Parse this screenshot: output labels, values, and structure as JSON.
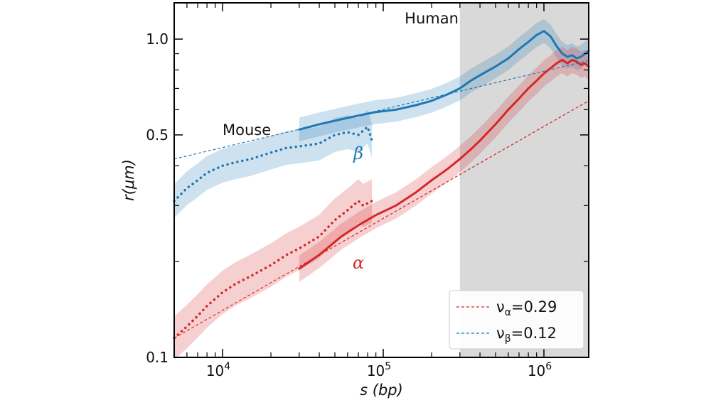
{
  "chart_data": {
    "type": "line",
    "xlabel": "s (bp)",
    "ylabel": "r(μm)",
    "xscale": "log",
    "yscale": "log",
    "xlim": [
      5000,
      1900000
    ],
    "ylim": [
      0.1,
      1.3
    ],
    "x_ticks": [
      {
        "value": 10000,
        "base": "10",
        "exp": "4"
      },
      {
        "value": 100000,
        "base": "10",
        "exp": "5"
      },
      {
        "value": 1000000,
        "base": "10",
        "exp": "6"
      }
    ],
    "y_ticks": [
      {
        "value": 0.1,
        "label": "0.1"
      },
      {
        "value": 0.5,
        "label": "0.5"
      },
      {
        "value": 1.0,
        "label": "1.0"
      }
    ],
    "grid": false,
    "colors": {
      "alpha": "#d62728",
      "beta": "#1f77b4",
      "shade": "#d9d9d9"
    },
    "shaded_region": {
      "x_start": 300000,
      "x_end": 1900000
    },
    "annotations": [
      {
        "id": "human",
        "text": "Human",
        "x": 200000,
        "y": 1.12
      },
      {
        "id": "mouse",
        "text": "Mouse",
        "x": 10000,
        "y": 0.5
      },
      {
        "id": "beta",
        "text": "β",
        "x": 70000,
        "y": 0.42
      },
      {
        "id": "alpha",
        "text": "α",
        "x": 70000,
        "y": 0.19
      }
    ],
    "legend": {
      "position": "bottom-right",
      "entries": [
        {
          "symbol": "ν",
          "subscript": "α",
          "value": "=0.29",
          "color": "#d62728"
        },
        {
          "symbol": "ν",
          "subscript": "β",
          "value": "=0.12",
          "color": "#1f77b4"
        }
      ]
    },
    "series": [
      {
        "style": "solid",
        "color": "#1f77b4",
        "band_rel": 0.09,
        "x": [
          30000,
          40000,
          55000,
          70000,
          90000,
          120000,
          160000,
          200000,
          250000,
          300000,
          350000,
          400000,
          500000,
          600000,
          700000,
          800000,
          900000,
          1000000,
          1100000,
          1200000,
          1300000,
          1400000,
          1500000,
          1600000,
          1700000,
          1800000,
          1900000
        ],
        "y": [
          0.52,
          0.54,
          0.56,
          0.575,
          0.59,
          0.6,
          0.62,
          0.64,
          0.67,
          0.7,
          0.74,
          0.77,
          0.82,
          0.87,
          0.93,
          0.98,
          1.03,
          1.06,
          1.02,
          0.95,
          0.9,
          0.88,
          0.89,
          0.87,
          0.88,
          0.9,
          0.92
        ]
      },
      {
        "style": "dotted",
        "color": "#1f77b4",
        "band_rel": 0.13,
        "x": [
          5000,
          6000,
          7000,
          8000,
          10000,
          12000,
          15000,
          20000,
          25000,
          30000,
          40000,
          50000,
          60000,
          70000,
          80000,
          85000
        ],
        "y": [
          0.31,
          0.34,
          0.36,
          0.38,
          0.4,
          0.41,
          0.42,
          0.44,
          0.455,
          0.46,
          0.47,
          0.5,
          0.51,
          0.5,
          0.53,
          0.48
        ]
      },
      {
        "style": "solid",
        "color": "#d62728",
        "band_rel": 0.1,
        "x": [
          30000,
          40000,
          55000,
          70000,
          90000,
          120000,
          160000,
          200000,
          250000,
          300000,
          350000,
          400000,
          500000,
          600000,
          700000,
          800000,
          900000,
          1000000,
          1100000,
          1200000,
          1300000,
          1400000,
          1500000,
          1600000,
          1700000,
          1800000,
          1900000
        ],
        "y": [
          0.19,
          0.21,
          0.24,
          0.26,
          0.28,
          0.3,
          0.33,
          0.36,
          0.39,
          0.42,
          0.45,
          0.48,
          0.54,
          0.6,
          0.65,
          0.7,
          0.74,
          0.78,
          0.81,
          0.84,
          0.86,
          0.84,
          0.86,
          0.85,
          0.83,
          0.84,
          0.82
        ]
      },
      {
        "style": "dotted",
        "color": "#d62728",
        "band_rel": 0.17,
        "x": [
          5000,
          6000,
          7000,
          8000,
          10000,
          12000,
          15000,
          20000,
          25000,
          30000,
          40000,
          50000,
          60000,
          70000,
          75000,
          85000
        ],
        "y": [
          0.115,
          0.125,
          0.135,
          0.145,
          0.16,
          0.17,
          0.18,
          0.195,
          0.21,
          0.22,
          0.24,
          0.27,
          0.29,
          0.31,
          0.3,
          0.31
        ]
      },
      {
        "style": "dashed",
        "color": "#1f77b4",
        "band_rel": 0,
        "x": [
          5000,
          1900000
        ],
        "y": [
          0.42,
          0.856
        ]
      },
      {
        "style": "dashed",
        "color": "#d62728",
        "band_rel": 0,
        "x": [
          5000,
          1900000
        ],
        "y": [
          0.115,
          0.64
        ]
      }
    ]
  }
}
